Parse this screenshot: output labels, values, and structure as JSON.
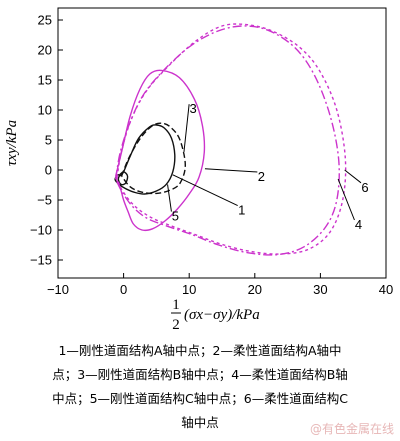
{
  "chart_data": {
    "type": "line",
    "xlabel_frac": [
      "1",
      "2"
    ],
    "xlabel_rest": "(σx−σy)/kPa",
    "ylabel": "τxy/kPa",
    "xlim": [
      -10,
      40
    ],
    "ylim": [
      -18,
      27
    ],
    "xticks": [
      -10,
      0,
      10,
      20,
      30,
      40
    ],
    "yticks": [
      -15,
      -10,
      -5,
      0,
      5,
      10,
      15,
      20,
      25
    ],
    "grid": false,
    "series": [
      {
        "name": "1",
        "color": "#111111",
        "dash": "solid",
        "x": [
          -0.5,
          0.0,
          1.0,
          2.3,
          4.0,
          5.0,
          6.2,
          7.3,
          7.8,
          7.5,
          6.5,
          5.0,
          3.2,
          1.6,
          0.3,
          -0.7,
          -1.3,
          -0.9,
          -0.5
        ],
        "y": [
          -1.0,
          -0.3,
          2.3,
          5.3,
          7.2,
          7.5,
          7.0,
          5.3,
          2.5,
          -0.3,
          -2.4,
          -3.5,
          -4.0,
          -3.7,
          -3.1,
          -2.4,
          -1.6,
          -0.8,
          -1.0
        ]
      },
      {
        "name": "2",
        "color": "#cc33cc",
        "dash": "solid",
        "x": [
          -1.2,
          -0.2,
          1.0,
          2.5,
          4.0,
          5.8,
          8.5,
          10.8,
          12.0,
          12.3,
          11.5,
          10.0,
          8.2,
          6.3,
          4.4,
          2.8,
          1.5,
          0.7,
          0.0,
          -0.5,
          -1.0,
          -1.2
        ],
        "y": [
          -1.0,
          3.5,
          9.0,
          13.5,
          16.0,
          16.6,
          15.4,
          11.8,
          7.5,
          3.0,
          -1.2,
          -4.0,
          -6.5,
          -8.5,
          -9.8,
          -10.0,
          -9.0,
          -7.0,
          -5.0,
          -3.0,
          -1.8,
          -1.0
        ]
      },
      {
        "name": "3",
        "color": "#111111",
        "dash": "6,3",
        "x": [
          -0.3,
          0.8,
          2.5,
          4.3,
          5.8,
          7.2,
          8.6,
          9.4,
          8.6,
          7.0,
          5.0,
          2.8,
          1.0,
          -0.3
        ],
        "y": [
          -1.0,
          2.0,
          5.2,
          7.3,
          7.8,
          7.1,
          5.0,
          0.8,
          -2.2,
          -3.4,
          -3.9,
          -3.7,
          -2.8,
          -1.0
        ]
      },
      {
        "name": "4",
        "color": "#cc33cc",
        "dash": "9,3,2,3",
        "x": [
          -1.2,
          -0.5,
          1.0,
          3.0,
          6.0,
          10.0,
          14.0,
          18.0,
          22.0,
          26.0,
          29.0,
          31.5,
          32.8,
          32.5,
          30.8,
          27.5,
          23.5,
          19.0,
          14.5,
          10.5,
          6.5,
          3.5,
          1.3,
          -0.3,
          -1.2
        ],
        "y": [
          -1.5,
          3.0,
          8.0,
          12.5,
          16.5,
          20.5,
          23.0,
          24.0,
          23.3,
          20.5,
          16.0,
          9.0,
          1.5,
          -5.0,
          -9.5,
          -12.8,
          -14.1,
          -13.8,
          -12.5,
          -10.8,
          -9.3,
          -8.0,
          -6.0,
          -3.5,
          -1.5
        ]
      },
      {
        "name": "5",
        "color": "#111111",
        "dash": "solid",
        "x": [
          -0.6,
          0.0,
          0.6,
          0.3,
          -0.4,
          -0.8,
          -0.6
        ],
        "y": [
          -0.8,
          -0.3,
          -1.0,
          -2.2,
          -2.4,
          -1.6,
          -0.8
        ]
      },
      {
        "name": "6",
        "color": "#cc33cc",
        "dash": "3,3",
        "x": [
          -1.0,
          -0.3,
          1.2,
          3.5,
          7.0,
          11.0,
          15.0,
          19.0,
          23.0,
          27.0,
          30.0,
          32.5,
          33.8,
          33.4,
          31.5,
          28.2,
          24.0,
          19.5,
          15.0,
          11.0,
          7.0,
          4.0,
          1.5,
          -0.3,
          -1.0
        ],
        "y": [
          -1.2,
          3.2,
          8.5,
          13.2,
          17.5,
          21.5,
          24.0,
          24.2,
          23.0,
          20.3,
          16.3,
          10.0,
          2.0,
          -5.0,
          -10.3,
          -13.2,
          -14.0,
          -13.6,
          -12.4,
          -10.8,
          -9.2,
          -7.8,
          -5.8,
          -3.2,
          -1.2
        ]
      }
    ],
    "annotations": [
      {
        "label": "1",
        "x": 7.5,
        "y": -0.8,
        "tx": 18.0,
        "ty": -6.6
      },
      {
        "label": "2",
        "x": 12.4,
        "y": 0.2,
        "tx": 21.0,
        "ty": -1.0
      },
      {
        "label": "3",
        "x": 9.2,
        "y": 3.0,
        "tx": 10.6,
        "ty": 10.3
      },
      {
        "label": "4",
        "x": 32.7,
        "y": -1.5,
        "tx": 35.8,
        "ty": -9.0
      },
      {
        "label": "5",
        "x": 6.7,
        "y": -2.4,
        "tx": 7.9,
        "ty": -7.6
      },
      {
        "label": "6",
        "x": 33.7,
        "y": 0.0,
        "tx": 36.8,
        "ty": -2.8
      }
    ]
  },
  "caption": {
    "line1": "1—刚性道面结构A轴中点；2—柔性道面结构A轴中",
    "line2": "点；3—刚性道面结构B轴中点；4—柔性道面结构B轴",
    "line3": "中点；5—刚性道面结构C轴中点；6—柔性道面结构C",
    "line4": "轴中点"
  },
  "watermark": "@有色金属在线"
}
